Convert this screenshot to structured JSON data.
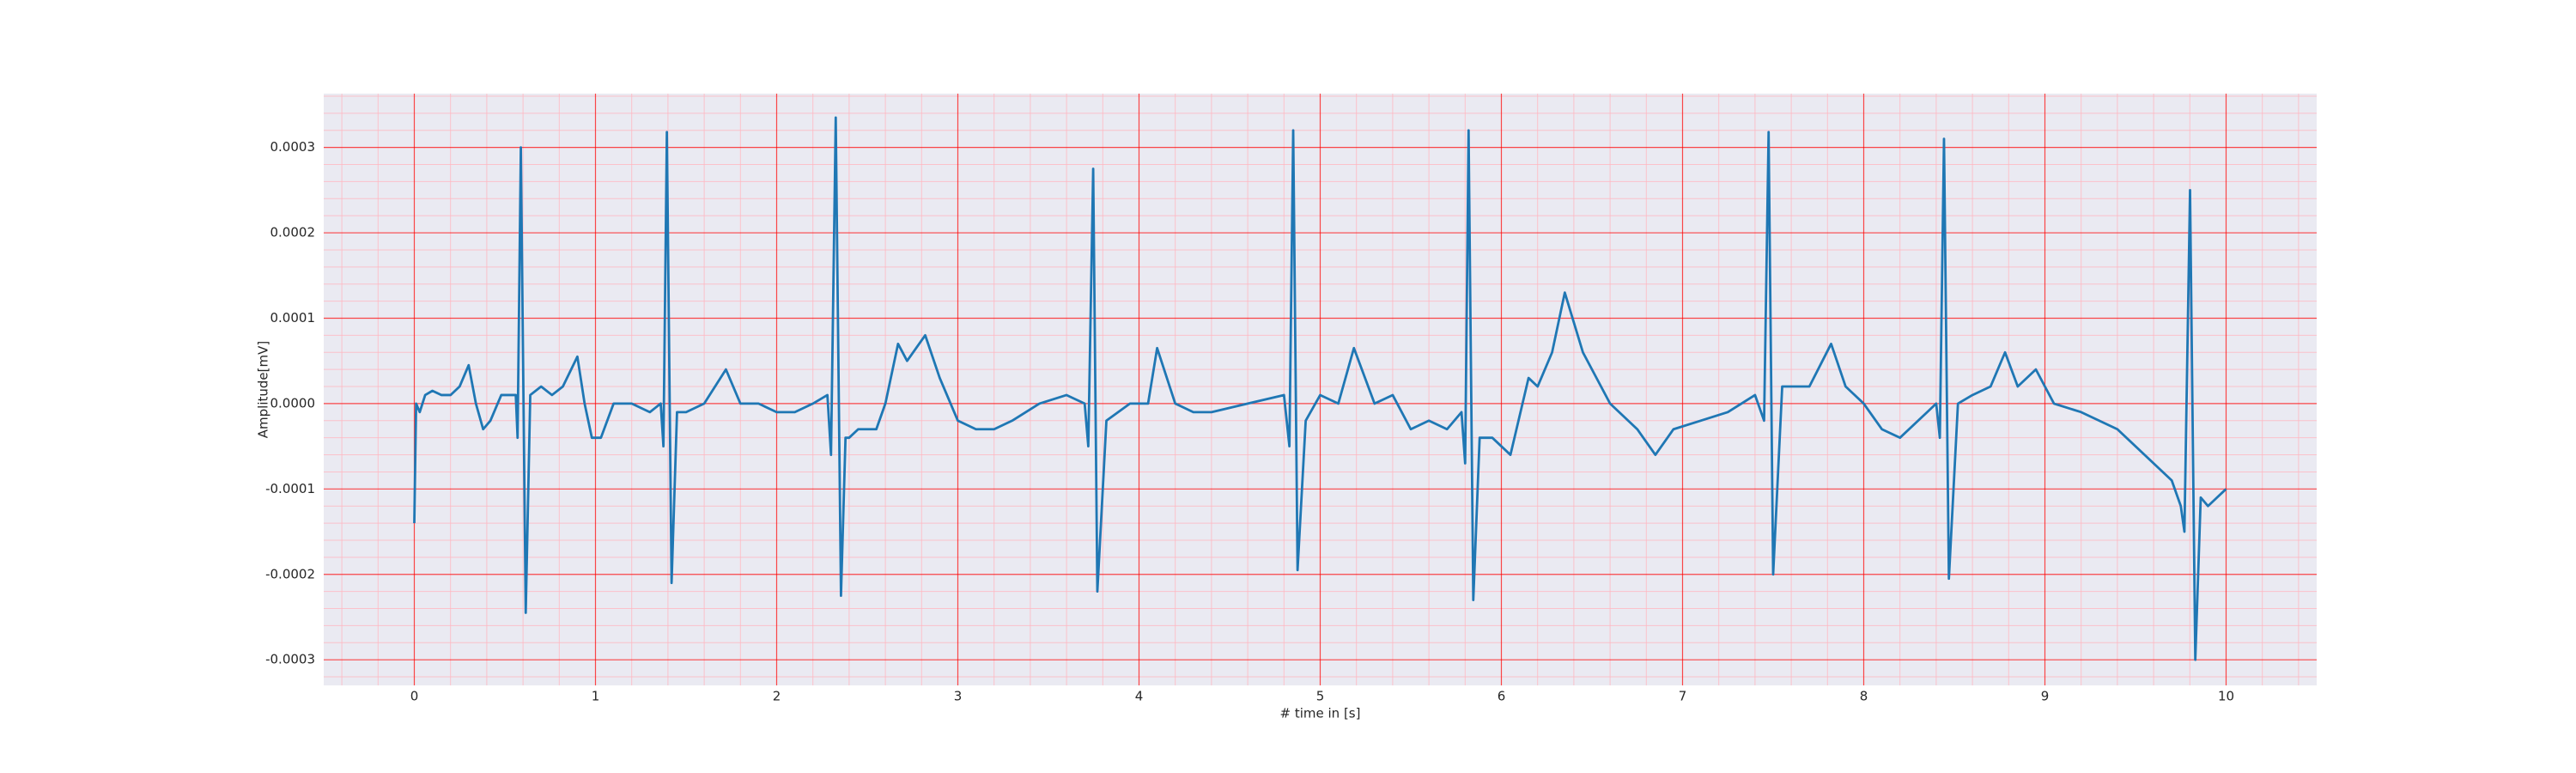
{
  "chart_data": {
    "type": "line",
    "xlabel": "# time in [s]",
    "ylabel": "Amplitude[mV]",
    "x": [
      0,
      0.01,
      0.03,
      0.06,
      0.1,
      0.15,
      0.2,
      0.25,
      0.3,
      0.34,
      0.38,
      0.42,
      0.48,
      0.53,
      0.56,
      0.57,
      0.588,
      0.615,
      0.64,
      0.7,
      0.76,
      0.82,
      0.9,
      0.94,
      0.98,
      1.03,
      1.1,
      1.2,
      1.3,
      1.36,
      1.375,
      1.394,
      1.42,
      1.45,
      1.5,
      1.6,
      1.72,
      1.8,
      1.9,
      2.0,
      2.1,
      2.2,
      2.28,
      2.3,
      2.326,
      2.355,
      2.38,
      2.4,
      2.45,
      2.55,
      2.6,
      2.67,
      2.72,
      2.82,
      2.9,
      3.0,
      3.1,
      3.2,
      3.3,
      3.45,
      3.6,
      3.7,
      3.72,
      3.747,
      3.77,
      3.82,
      3.95,
      4.05,
      4.1,
      4.2,
      4.3,
      4.4,
      4.6,
      4.8,
      4.83,
      4.851,
      4.875,
      4.92,
      5.0,
      5.1,
      5.186,
      5.3,
      5.4,
      5.5,
      5.6,
      5.7,
      5.78,
      5.8,
      5.819,
      5.845,
      5.88,
      5.95,
      6.05,
      6.15,
      6.2,
      6.28,
      6.35,
      6.45,
      6.6,
      6.75,
      6.85,
      6.95,
      7.1,
      7.25,
      7.4,
      7.45,
      7.475,
      7.5,
      7.55,
      7.7,
      7.82,
      7.9,
      8.0,
      8.1,
      8.2,
      8.35,
      8.4,
      8.42,
      8.443,
      8.47,
      8.52,
      8.6,
      8.7,
      8.78,
      8.85,
      8.95,
      9.05,
      9.2,
      9.4,
      9.6,
      9.7,
      9.75,
      9.77,
      9.801,
      9.83,
      9.86,
      9.9,
      9.95,
      10.0
    ],
    "values": [
      -0.00014,
      0,
      -1e-05,
      1e-05,
      1.5e-05,
      1e-05,
      1e-05,
      2e-05,
      4.5e-05,
      0,
      -3e-05,
      -2e-05,
      1e-05,
      1e-05,
      1e-05,
      -4e-05,
      0.0003,
      -0.000245,
      1e-05,
      2e-05,
      1e-05,
      2e-05,
      5.5e-05,
      0,
      -4e-05,
      -4e-05,
      0,
      0,
      -1e-05,
      0,
      -5e-05,
      0.000318,
      -0.00021,
      -1e-05,
      -1e-05,
      0,
      4e-05,
      0,
      0,
      -1e-05,
      -1e-05,
      0,
      1e-05,
      -6e-05,
      0.000335,
      -0.000225,
      -4e-05,
      -4e-05,
      -3e-05,
      -3e-05,
      0,
      7e-05,
      5e-05,
      8e-05,
      3e-05,
      -2e-05,
      -3e-05,
      -3e-05,
      -2e-05,
      0,
      1e-05,
      0,
      -5e-05,
      0.000275,
      -0.00022,
      -2e-05,
      0,
      0,
      6.5e-05,
      0,
      -1e-05,
      -1e-05,
      0,
      1e-05,
      -5e-05,
      0.00032,
      -0.000195,
      -2e-05,
      1e-05,
      0,
      6.5e-05,
      0,
      1e-05,
      -3e-05,
      -2e-05,
      -3e-05,
      -1e-05,
      -7e-05,
      0.00032,
      -0.00023,
      -4e-05,
      -4e-05,
      -6e-05,
      3e-05,
      2e-05,
      6e-05,
      0.00013,
      6e-05,
      0,
      -3e-05,
      -6e-05,
      -3e-05,
      -2e-05,
      -1e-05,
      1e-05,
      -2e-05,
      0.000318,
      -0.0002,
      2e-05,
      2e-05,
      7e-05,
      2e-05,
      0,
      -3e-05,
      -4e-05,
      -1e-05,
      0,
      -4e-05,
      0.00031,
      -0.000205,
      0,
      1e-05,
      2e-05,
      6e-05,
      2e-05,
      4e-05,
      0,
      -1e-05,
      -3e-05,
      -7e-05,
      -9e-05,
      -0.00012,
      -0.00015,
      0.00025,
      -0.0003,
      -0.00011,
      -0.00012,
      -0.00011,
      -0.0001
    ],
    "color": "#1f77b4",
    "xlim": [
      -0.5,
      10.5
    ],
    "xticks": [
      0,
      1,
      2,
      3,
      4,
      5,
      6,
      7,
      8,
      9,
      10
    ],
    "ylim": [
      -0.00033,
      0.000363
    ],
    "yticks": [
      -0.0003,
      -0.0002,
      -0.0001,
      {
        "value": 0,
        "label": "0.0000"
      },
      0.0001,
      0.0002,
      0.0003
    ],
    "grid": true,
    "grid_color": "#ff0000",
    "minor_grid": true,
    "minor_grid_color": "#ffb6c1",
    "minor_divisions": 5,
    "background": "#eaeaf2"
  }
}
